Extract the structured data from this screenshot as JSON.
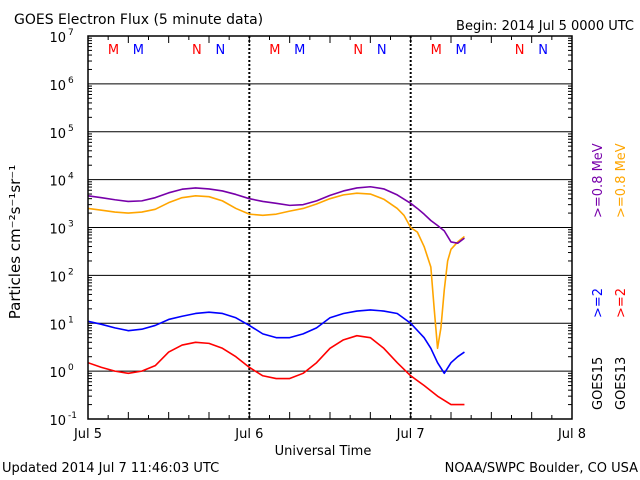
{
  "header": {
    "title": "GOES Electron Flux (5 minute data)",
    "begin": "Begin: 2014 Jul 5 0000 UTC"
  },
  "footer": {
    "updated": "Updated 2014 Jul  7 11:46:03 UTC",
    "credit": "NOAA/SWPC Boulder, CO USA"
  },
  "chart_data": {
    "type": "line",
    "title": "GOES Electron Flux (5 minute data)",
    "xlabel": "Universal Time",
    "ylabel": "Particles cm⁻²s⁻¹sr⁻¹",
    "y_scale": "log",
    "ylim": [
      0.1,
      10000000
    ],
    "xlim": [
      0,
      72
    ],
    "x_unit": "hours since 2014 Jul 5 0000 UTC",
    "x_ticks": [
      {
        "x": 0,
        "label": "Jul 5"
      },
      {
        "x": 24,
        "label": "Jul 6"
      },
      {
        "x": 48,
        "label": "Jul 7"
      },
      {
        "x": 72,
        "label": "Jul 8"
      }
    ],
    "y_ticks": [
      {
        "exp": -1,
        "label": "10",
        "sup": "-1"
      },
      {
        "exp": 0,
        "label": "10",
        "sup": "0"
      },
      {
        "exp": 1,
        "label": "10",
        "sup": "1"
      },
      {
        "exp": 2,
        "label": "10",
        "sup": "2"
      },
      {
        "exp": 3,
        "label": "10",
        "sup": "3"
      },
      {
        "exp": 4,
        "label": "10",
        "sup": "4"
      },
      {
        "exp": 5,
        "label": "10",
        "sup": "5"
      },
      {
        "exp": 6,
        "label": "10",
        "sup": "6"
      },
      {
        "exp": 7,
        "label": "10",
        "sup": "7"
      }
    ],
    "grid": true,
    "threshold": {
      "value": 1000,
      "style": "dashed"
    },
    "midnight_noon_markers": [
      {
        "x": 3.8,
        "label": "M",
        "color": "#ff0000"
      },
      {
        "x": 7.5,
        "label": "M",
        "color": "#0000ff"
      },
      {
        "x": 16.2,
        "label": "N",
        "color": "#ff0000"
      },
      {
        "x": 19.7,
        "label": "N",
        "color": "#0000ff"
      },
      {
        "x": 27.8,
        "label": "M",
        "color": "#ff0000"
      },
      {
        "x": 31.5,
        "label": "M",
        "color": "#0000ff"
      },
      {
        "x": 40.2,
        "label": "N",
        "color": "#ff0000"
      },
      {
        "x": 43.7,
        "label": "N",
        "color": "#0000ff"
      },
      {
        "x": 51.8,
        "label": "M",
        "color": "#ff0000"
      },
      {
        "x": 55.5,
        "label": "M",
        "color": "#0000ff"
      },
      {
        "x": 64.2,
        "label": "N",
        "color": "#ff0000"
      },
      {
        "x": 67.7,
        "label": "N",
        "color": "#0000ff"
      }
    ],
    "legend": {
      "placement": "right",
      "satellites": [
        "GOES15",
        "GOES13"
      ],
      "energy_hi_g15": ">=0.8 MeV",
      "energy_hi_g13": ">=0.8 MeV",
      "energy_lo_g15": ">=2",
      "energy_lo_g13": ">=2"
    },
    "series": [
      {
        "name": "GOES15 >=0.8 MeV",
        "color": "#7700aa",
        "x": [
          0,
          2,
          4,
          6,
          8,
          10,
          12,
          14,
          16,
          18,
          20,
          22,
          24,
          26,
          28,
          30,
          32,
          34,
          36,
          38,
          40,
          42,
          44,
          46,
          48,
          49,
          50,
          51,
          52,
          53,
          54,
          55,
          56
        ],
        "y": [
          4600,
          4200,
          3800,
          3500,
          3600,
          4200,
          5300,
          6300,
          6700,
          6400,
          5800,
          4900,
          4000,
          3500,
          3200,
          2900,
          3000,
          3600,
          4700,
          5800,
          6700,
          7100,
          6400,
          4800,
          3200,
          2500,
          1900,
          1400,
          1100,
          850,
          500,
          470,
          600
        ]
      },
      {
        "name": "GOES13 >=0.8 MeV",
        "color": "#ffa500",
        "x": [
          0,
          2,
          4,
          6,
          8,
          10,
          12,
          14,
          16,
          18,
          20,
          22,
          24,
          26,
          28,
          30,
          32,
          34,
          36,
          38,
          40,
          42,
          44,
          46,
          47,
          48,
          49,
          50,
          51,
          51.5,
          52,
          52.5,
          53,
          53.5,
          54,
          55,
          56
        ],
        "y": [
          2500,
          2300,
          2100,
          2000,
          2100,
          2400,
          3300,
          4200,
          4600,
          4400,
          3600,
          2500,
          1900,
          1800,
          1900,
          2200,
          2500,
          3100,
          4000,
          4800,
          5200,
          5000,
          3900,
          2500,
          1800,
          1000,
          800,
          400,
          150,
          20,
          3,
          8,
          50,
          200,
          350,
          500,
          650
        ]
      },
      {
        "name": "GOES15 >=2",
        "color": "#0000ff",
        "x": [
          0,
          2,
          4,
          6,
          8,
          10,
          12,
          14,
          16,
          18,
          20,
          22,
          24,
          26,
          28,
          30,
          32,
          34,
          36,
          38,
          40,
          42,
          44,
          46,
          48,
          50,
          51,
          52,
          53,
          54,
          55,
          56
        ],
        "y": [
          11,
          9.5,
          8,
          7,
          7.5,
          9,
          12,
          14,
          16,
          17,
          16,
          13,
          9,
          6,
          5,
          5,
          6,
          8,
          13,
          16,
          18,
          19,
          18,
          16,
          10,
          5,
          3,
          1.5,
          0.9,
          1.5,
          2,
          2.5
        ]
      },
      {
        "name": "GOES13 >=2",
        "color": "#ff0000",
        "x": [
          0,
          2,
          4,
          6,
          8,
          10,
          12,
          14,
          16,
          18,
          20,
          22,
          24,
          26,
          28,
          30,
          32,
          34,
          36,
          38,
          40,
          42,
          44,
          46,
          48,
          50,
          52,
          54,
          56
        ],
        "y": [
          1.5,
          1.2,
          1.0,
          0.9,
          1.0,
          1.3,
          2.5,
          3.5,
          4.0,
          3.8,
          3.0,
          2.0,
          1.2,
          0.8,
          0.7,
          0.7,
          0.9,
          1.5,
          3.0,
          4.5,
          5.5,
          5.0,
          3.0,
          1.5,
          0.8,
          0.5,
          0.3,
          0.2,
          0.2
        ]
      }
    ]
  }
}
